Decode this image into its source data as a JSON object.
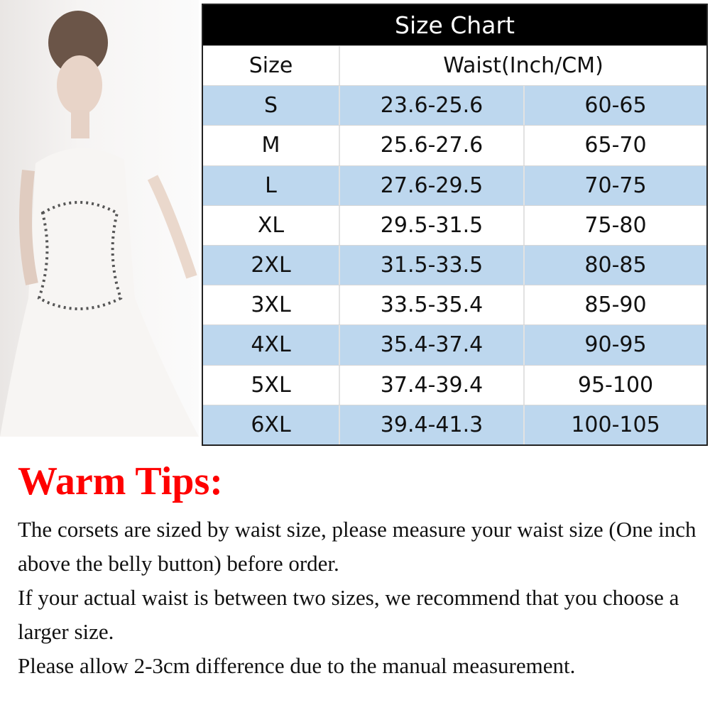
{
  "photo": {
    "description_icon": "bride-in-corset-photo"
  },
  "table": {
    "title": "Size Chart",
    "headers": {
      "size": "Size",
      "waist": "Waist(Inch/CM)"
    },
    "rows": [
      {
        "size": "S",
        "inch": "23.6-25.6",
        "cm": "60-65"
      },
      {
        "size": "M",
        "inch": "25.6-27.6",
        "cm": "65-70"
      },
      {
        "size": "L",
        "inch": "27.6-29.5",
        "cm": "70-75"
      },
      {
        "size": "XL",
        "inch": "29.5-31.5",
        "cm": "75-80"
      },
      {
        "size": "2XL",
        "inch": "31.5-33.5",
        "cm": "80-85"
      },
      {
        "size": "3XL",
        "inch": "33.5-35.4",
        "cm": "85-90"
      },
      {
        "size": "4XL",
        "inch": "35.4-37.4",
        "cm": "90-95"
      },
      {
        "size": "5XL",
        "inch": "37.4-39.4",
        "cm": "95-100"
      },
      {
        "size": "6XL",
        "inch": "39.4-41.3",
        "cm": "100-105"
      }
    ],
    "colors": {
      "header_bg": "#000000",
      "stripe": "#bdd7ee"
    }
  },
  "tips": {
    "title": "Warm Tips:",
    "title_color": "#ff0000",
    "lines": [
      "The corsets are sized by waist size, please measure your waist size (One inch above the belly button) before order.",
      "If your actual waist is between two sizes, we recommend that you choose a larger size.",
      "Please allow 2-3cm difference due to the manual measurement."
    ]
  }
}
